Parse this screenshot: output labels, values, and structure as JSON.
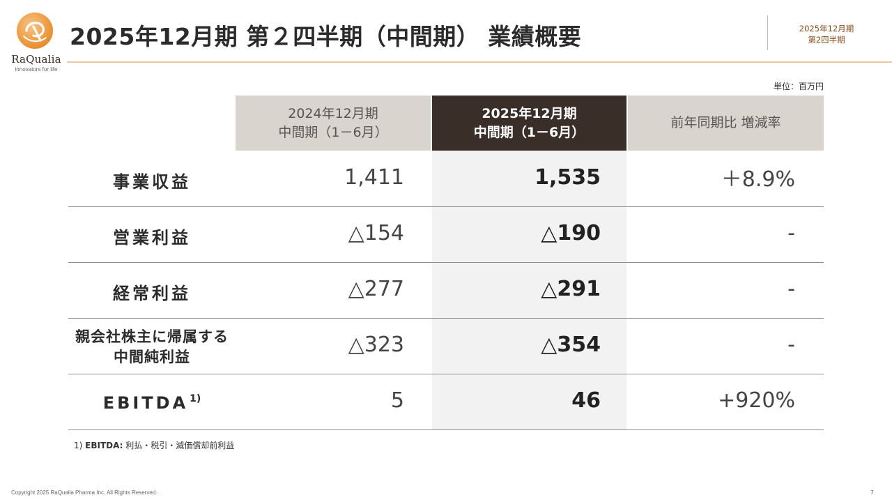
{
  "logo": {
    "name": "RaQualia",
    "tagline": "innovators for life"
  },
  "title": "2025年12月期 第２四半期（中間期） 業績概要",
  "period_tag": {
    "line1": "2025年12月期",
    "line2": "第2四半期"
  },
  "unit_note": "単位：百万円",
  "columns": [
    {
      "line1": "2024年12月期",
      "line2": "中間期（1－6月）"
    },
    {
      "line1": "2025年12月期",
      "line2": "中間期（1－6月）"
    },
    {
      "line1": "前年同期比 増減率"
    }
  ],
  "rows": [
    {
      "label": "事業収益",
      "prev": "1,411",
      "curr": "1,535",
      "rate": "＋8.9%"
    },
    {
      "label": "営業利益",
      "prev": "△154",
      "curr": "△190",
      "rate": "-"
    },
    {
      "label": "経常利益",
      "prev": "△277",
      "curr": "△291",
      "rate": "-"
    },
    {
      "label_line1": "親会社株主に帰属する",
      "label_line2": "中間純利益",
      "prev": "△323",
      "curr": "△354",
      "rate": "-"
    },
    {
      "label": "EBITDA",
      "label_sup": "1)",
      "prev": "5",
      "curr": "46",
      "rate": "+920%"
    }
  ],
  "footnote": {
    "marker": "1)",
    "term": "EBITDA:",
    "text": "利払・税引・減価償却前利益"
  },
  "copyright": "Copyright 2025 RaQualia Pharma Inc. All Rights Reserved.",
  "page_number": "7",
  "colors": {
    "accent": "#efc99e",
    "dark_header": "#3a2e28",
    "light_header": "#d9d5ce",
    "logo_orange": "#ee9a3e"
  }
}
